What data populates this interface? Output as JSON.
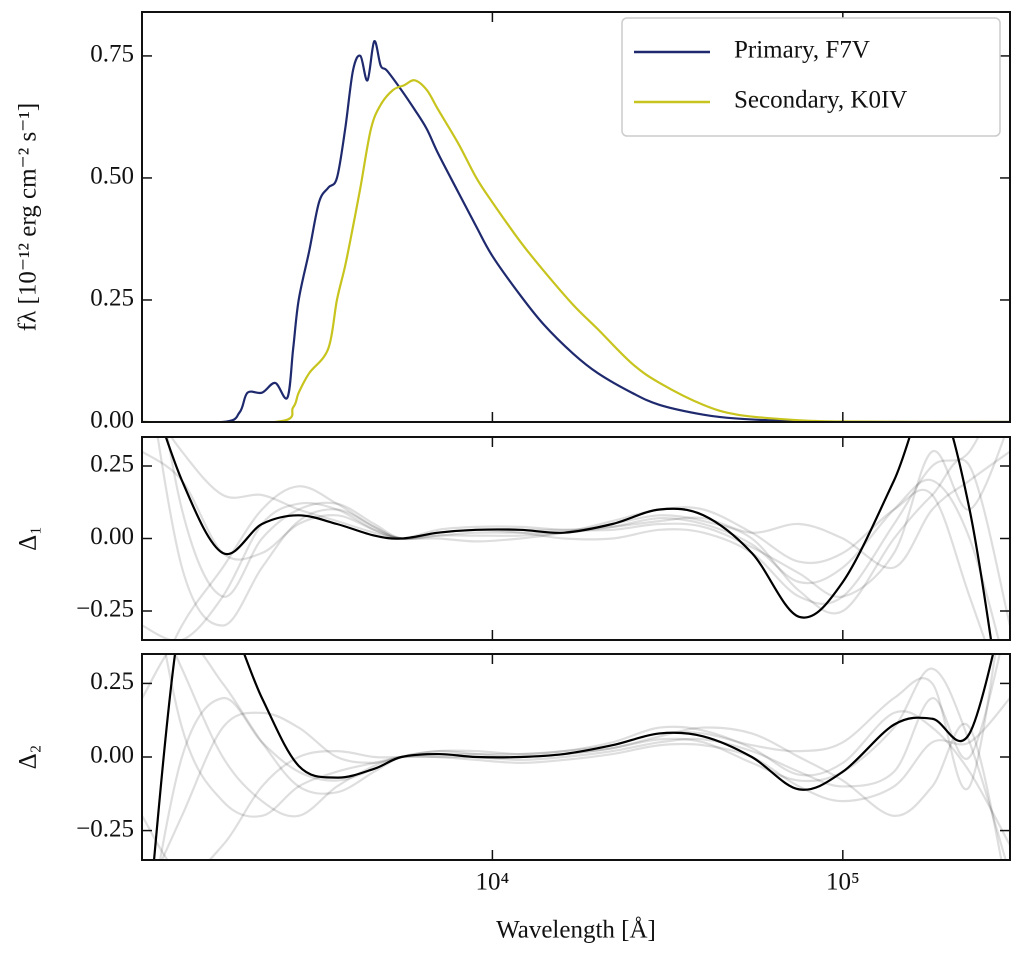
{
  "chart_data": [
    {
      "type": "line",
      "xscale": "log",
      "ylabel": "fλ [10⁻¹² erg cm⁻² s⁻¹]",
      "xlim": [
        1000,
        300000
      ],
      "ylim": [
        0,
        0.84
      ],
      "xticks": [
        10000,
        100000
      ],
      "yticks": [
        {
          "value": 0,
          "label": "0.00"
        },
        {
          "value": 0.25,
          "label": "0.25"
        },
        {
          "value": 0.5,
          "label": "0.50"
        },
        {
          "value": 0.75,
          "label": "0.75"
        }
      ],
      "legend": "upper right",
      "series": [
        {
          "name": "Primary, F7V",
          "color": "#1f2a6e",
          "x": [
            1000,
            1700,
            1900,
            2000,
            2200,
            2400,
            2600,
            2700,
            2800,
            3000,
            3200,
            3400,
            3600,
            3800,
            4000,
            4200,
            4400,
            4600,
            4800,
            5000,
            5500,
            6000,
            6500,
            7000,
            8000,
            9000,
            10000,
            12000,
            14000,
            17000,
            20000,
            25000,
            30000,
            40000,
            50000,
            70000,
            100000,
            300000
          ],
          "values": [
            0,
            0,
            0.02,
            0.06,
            0.06,
            0.08,
            0.05,
            0.15,
            0.25,
            0.35,
            0.45,
            0.48,
            0.5,
            0.6,
            0.72,
            0.75,
            0.7,
            0.78,
            0.73,
            0.72,
            0.68,
            0.64,
            0.6,
            0.55,
            0.47,
            0.4,
            0.34,
            0.26,
            0.2,
            0.14,
            0.1,
            0.06,
            0.035,
            0.015,
            0.007,
            0.002,
            0,
            0
          ]
        },
        {
          "name": "Secondary, K0IV",
          "color": "#c8c41e",
          "x": [
            1000,
            2400,
            2700,
            2800,
            3000,
            3400,
            3600,
            3800,
            4000,
            4200,
            4500,
            4800,
            5200,
            5600,
            6000,
            6500,
            7000,
            8000,
            9000,
            10000,
            12000,
            14000,
            17000,
            20000,
            25000,
            30000,
            40000,
            50000,
            70000,
            100000,
            300000
          ],
          "values": [
            0,
            0,
            0.03,
            0.06,
            0.1,
            0.15,
            0.25,
            0.32,
            0.4,
            0.48,
            0.6,
            0.65,
            0.68,
            0.69,
            0.7,
            0.68,
            0.64,
            0.57,
            0.5,
            0.45,
            0.37,
            0.31,
            0.24,
            0.19,
            0.12,
            0.08,
            0.035,
            0.015,
            0.005,
            0.001,
            0
          ]
        }
      ]
    },
    {
      "type": "line",
      "xscale": "log",
      "ylabel": "Δ₁",
      "xlim": [
        1000,
        300000
      ],
      "ylim": [
        -0.35,
        0.35
      ],
      "xticks": [
        10000,
        100000
      ],
      "yticks": [
        {
          "value": -0.25,
          "label": "−0.25"
        },
        {
          "value": 0,
          "label": "0.00"
        },
        {
          "value": 0.25,
          "label": "0.25"
        }
      ],
      "x": [
        1000,
        1300,
        1700,
        2200,
        2800,
        3600,
        4600,
        5500,
        7000,
        9000,
        12000,
        16000,
        22000,
        30000,
        40000,
        55000,
        75000,
        100000,
        140000,
        180000,
        230000,
        300000
      ],
      "series": [
        {
          "color": "#000000",
          "opacity": 0.13,
          "values": [
            0.9,
            0.1,
            -0.2,
            0.0,
            0.1,
            0.12,
            0.05,
            0,
            0.01,
            0.02,
            0.02,
            0.02,
            0.04,
            0.07,
            0.05,
            -0.02,
            -0.15,
            -0.1,
            0.1,
            0.2,
            0,
            -0.5
          ]
        },
        {
          "color": "#000000",
          "opacity": 0.13,
          "values": [
            -0.6,
            -0.3,
            -0.1,
            0.1,
            0.18,
            0.12,
            0.04,
            0,
            0.02,
            0.03,
            0.02,
            0.0,
            0.0,
            0.03,
            0.02,
            -0.05,
            -0.2,
            -0.2,
            0.05,
            0.25,
            0.3,
            0.6
          ]
        },
        {
          "color": "#000000",
          "opacity": 0.13,
          "values": [
            0.5,
            0.3,
            0.15,
            0.15,
            0.1,
            0.06,
            0.02,
            0,
            0.0,
            -0.01,
            0.0,
            0.02,
            0.06,
            0.1,
            0.1,
            0.02,
            -0.08,
            -0.05,
            0.1,
            0.15,
            -0.2,
            -0.6
          ]
        },
        {
          "color": "#000000",
          "opacity": 0.13,
          "values": [
            -0.3,
            -0.35,
            -0.2,
            0.05,
            0.12,
            0.1,
            0.03,
            0,
            0.03,
            0.04,
            0.04,
            0.03,
            0.03,
            0.05,
            0.04,
            -0.03,
            -0.12,
            -0.2,
            -0.05,
            0.3,
            0.1,
            0.4
          ]
        },
        {
          "color": "#000000",
          "opacity": 0.13,
          "values": [
            0.3,
            0.2,
            -0.05,
            -0.05,
            0.05,
            0.08,
            0.03,
            0,
            0.01,
            0.01,
            0.01,
            0.02,
            0.05,
            0.08,
            0.06,
            0.0,
            -0.18,
            -0.25,
            0.0,
            0.15,
            0.25,
            -0.3
          ]
        },
        {
          "color": "#000000",
          "opacity": 0.13,
          "values": [
            0.7,
            -0.1,
            -0.3,
            -0.1,
            0.06,
            0.1,
            0.04,
            0,
            0.02,
            0.03,
            0.03,
            0.03,
            0.04,
            0.06,
            0.07,
            0.02,
            0.05,
            0.0,
            -0.1,
            0.1,
            0.2,
            0.3
          ]
        },
        {
          "color": "#000000",
          "opacity": 1,
          "values": [
            0.6,
            0.2,
            -0.05,
            0.05,
            0.08,
            0.05,
            0.01,
            0,
            0.02,
            0.03,
            0.03,
            0.02,
            0.05,
            0.1,
            0.08,
            -0.05,
            -0.27,
            -0.15,
            0.2,
            0.5,
            0.1,
            -0.8
          ]
        }
      ]
    },
    {
      "type": "line",
      "xscale": "log",
      "ylabel": "Δ₂",
      "xlabel": "Wavelength [Å]",
      "xlim": [
        1000,
        300000
      ],
      "ylim": [
        -0.35,
        0.35
      ],
      "xticks": [
        {
          "value": 10000,
          "label": "10⁴"
        },
        {
          "value": 100000,
          "label": "10⁵"
        }
      ],
      "yticks": [
        {
          "value": -0.25,
          "label": "−0.25"
        },
        {
          "value": 0,
          "label": "0.00"
        },
        {
          "value": 0.25,
          "label": "0.25"
        }
      ],
      "x": [
        1000,
        1300,
        1700,
        2200,
        2800,
        3600,
        4600,
        5500,
        7000,
        9000,
        12000,
        16000,
        22000,
        30000,
        40000,
        55000,
        75000,
        100000,
        140000,
        180000,
        230000,
        300000
      ],
      "series": [
        {
          "color": "#000000",
          "opacity": 0.13,
          "values": [
            0.6,
            0.3,
            0.0,
            -0.15,
            -0.2,
            -0.1,
            -0.03,
            0,
            0.02,
            0.01,
            0.0,
            0.01,
            0.03,
            0.06,
            0.05,
            -0.02,
            -0.08,
            -0.05,
            0.1,
            0.3,
            0.05,
            -0.4
          ]
        },
        {
          "color": "#000000",
          "opacity": 0.13,
          "values": [
            -0.5,
            -0.2,
            0.1,
            0.15,
            0.1,
            0.0,
            -0.02,
            0,
            0.01,
            0.0,
            -0.01,
            0.0,
            0.02,
            0.05,
            0.06,
            0.02,
            -0.05,
            -0.1,
            -0.05,
            0.2,
            0.0,
            0.5
          ]
        },
        {
          "color": "#000000",
          "opacity": 0.13,
          "values": [
            0.2,
            0.4,
            0.25,
            0.05,
            -0.1,
            -0.12,
            -0.05,
            0,
            0.02,
            0.02,
            0.01,
            0.02,
            0.05,
            0.1,
            0.09,
            0.03,
            -0.06,
            -0.02,
            0.15,
            0.1,
            -0.05,
            -0.3
          ]
        },
        {
          "color": "#000000",
          "opacity": 0.13,
          "values": [
            -0.2,
            -0.4,
            -0.3,
            -0.1,
            0.0,
            0.02,
            0.0,
            0,
            0.0,
            -0.01,
            -0.02,
            -0.01,
            0.01,
            0.04,
            0.04,
            0.0,
            -0.1,
            -0.15,
            -0.1,
            0.05,
            0.05,
            0.2
          ]
        },
        {
          "color": "#000000",
          "opacity": 0.13,
          "values": [
            0.8,
            0.1,
            -0.15,
            -0.2,
            -0.1,
            -0.05,
            -0.02,
            0,
            0.01,
            0.01,
            0.01,
            0.02,
            0.04,
            0.08,
            0.08,
            0.04,
            0.02,
            0.05,
            0.2,
            0.25,
            -0.1,
            0.7
          ]
        },
        {
          "color": "#000000",
          "opacity": 0.13,
          "values": [
            -0.7,
            0.0,
            0.2,
            0.05,
            -0.05,
            -0.08,
            -0.04,
            0,
            0.0,
            0.0,
            0.0,
            0.01,
            0.03,
            0.07,
            0.1,
            0.08,
            0.0,
            -0.08,
            -0.2,
            -0.1,
            0.1,
            -0.5
          ]
        },
        {
          "color": "#000000",
          "opacity": 1,
          "values": [
            -0.8,
            0.5,
            0.5,
            0.2,
            -0.03,
            -0.07,
            -0.04,
            0,
            0.01,
            0,
            0.0,
            0.01,
            0.04,
            0.08,
            0.07,
            0,
            -0.11,
            -0.05,
            0.11,
            0.13,
            0.08,
            0.6
          ]
        }
      ]
    }
  ]
}
